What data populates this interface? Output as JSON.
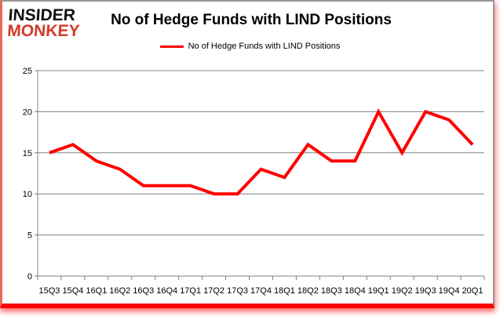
{
  "logo": {
    "line1": "INSIDER",
    "line2": "MONKEY"
  },
  "header": {
    "title": "No of Hedge Funds with LIND Positions"
  },
  "legend": {
    "label": "No of Hedge Funds with LIND Positions"
  },
  "colors": {
    "line": "#FF0000",
    "logo_black": "#111111",
    "logo_red": "#D23B2A",
    "grid": "#808080",
    "frame_border": "#969696",
    "left_accent": "#EA6A5A",
    "bottom_bar": "#FE0000"
  },
  "chart_data": {
    "type": "line",
    "title": "No of Hedge Funds with LIND Positions",
    "categories": [
      "15Q3",
      "15Q4",
      "16Q1",
      "16Q2",
      "16Q3",
      "16Q4",
      "17Q1",
      "17Q2",
      "17Q3",
      "17Q4",
      "18Q1",
      "18Q2",
      "18Q3",
      "18Q4",
      "19Q1",
      "19Q2",
      "19Q3",
      "19Q4",
      "20Q1"
    ],
    "values": [
      15,
      16,
      14,
      13,
      11,
      11,
      11,
      10,
      10,
      13,
      12,
      16,
      14,
      14,
      20,
      15,
      20,
      19,
      16
    ],
    "series": [
      {
        "name": "No of Hedge Funds with LIND Positions",
        "values": [
          15,
          16,
          14,
          13,
          11,
          11,
          11,
          10,
          10,
          13,
          12,
          16,
          14,
          14,
          20,
          15,
          20,
          19,
          16
        ]
      }
    ],
    "xlabel": "",
    "ylabel": "",
    "ylim": [
      0,
      25
    ],
    "yticks": [
      0,
      5,
      10,
      15,
      20,
      25
    ],
    "grid": true,
    "legend_position": "top-center",
    "line_color": "#FF0000"
  }
}
